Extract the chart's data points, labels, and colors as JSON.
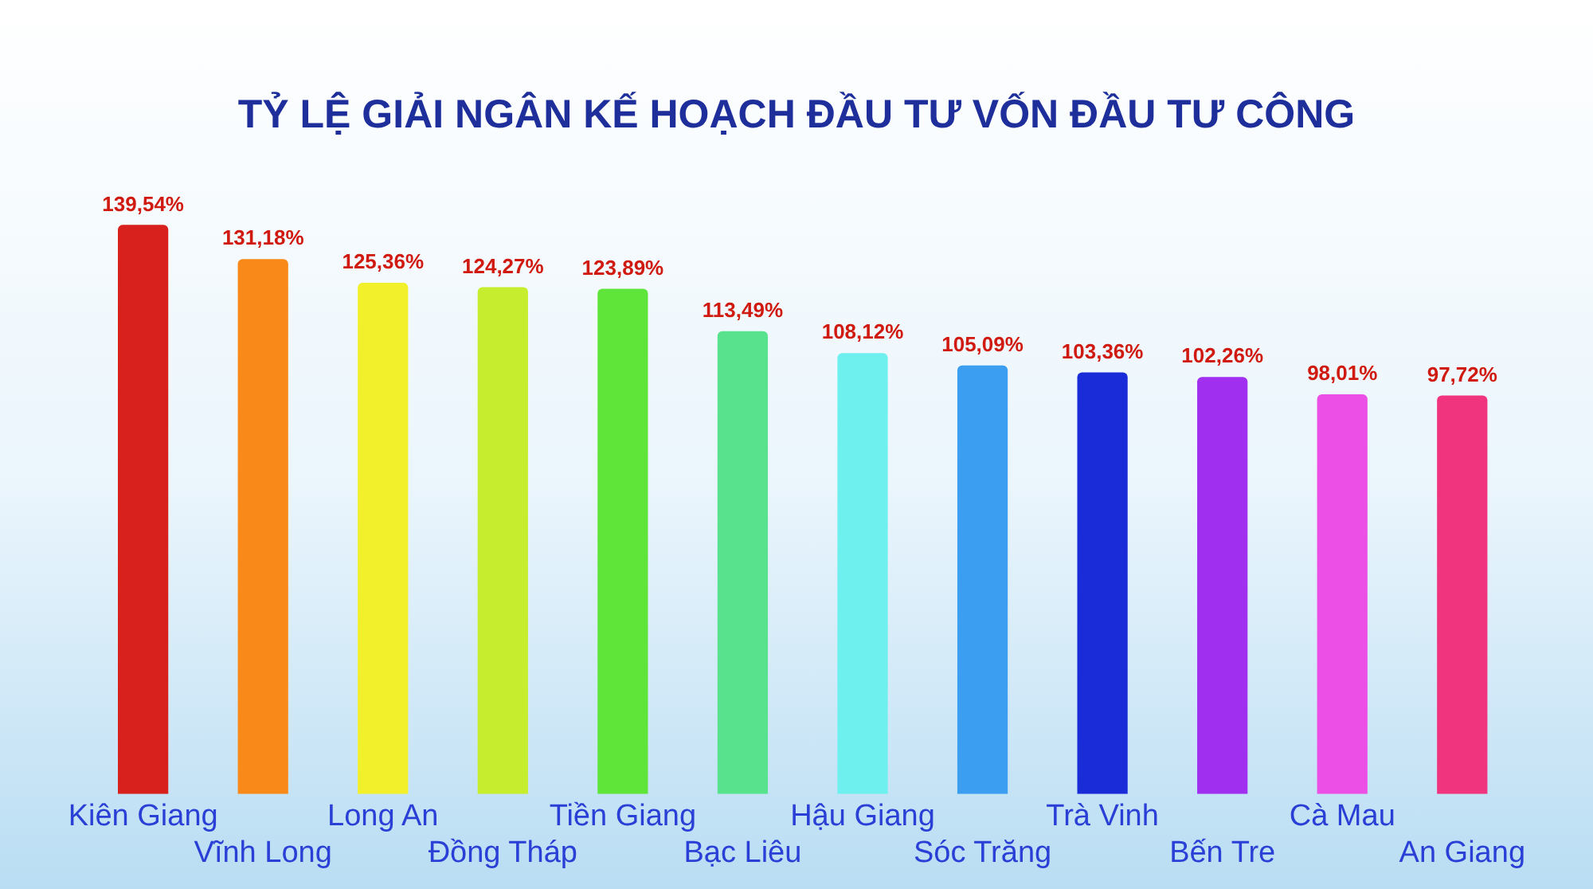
{
  "chart_data": {
    "type": "bar",
    "title": "TỶ LỆ GIẢI NGÂN KẾ HOẠCH ĐẦU TƯ VỐN ĐẦU TƯ CÔNG",
    "categories": [
      "Kiên Giang",
      "Vĩnh Long",
      "Long An",
      "Đồng Tháp",
      "Tiền Giang",
      "Bạc Liêu",
      "Hậu Giang",
      "Sóc Trăng",
      "Trà Vinh",
      "Bến Tre",
      "Cà Mau",
      "An Giang"
    ],
    "values": [
      139.54,
      131.18,
      125.36,
      124.27,
      123.89,
      113.49,
      108.12,
      105.09,
      103.36,
      102.26,
      98.01,
      97.72
    ],
    "value_labels": [
      "139,54%",
      "131,18%",
      "125,36%",
      "124,27%",
      "123,89%",
      "113,49%",
      "108,12%",
      "105,09%",
      "103,36%",
      "102,26%",
      "98,01%",
      "97,72%"
    ],
    "colors": [
      "#d8201c",
      "#f98a1a",
      "#f2f02a",
      "#c6ee2e",
      "#5fe43a",
      "#58e28e",
      "#6ef0ee",
      "#3b9ef0",
      "#1a2bd8",
      "#a12ff0",
      "#ec4fe6",
      "#f0347e"
    ],
    "grid": false,
    "legend": false
  }
}
